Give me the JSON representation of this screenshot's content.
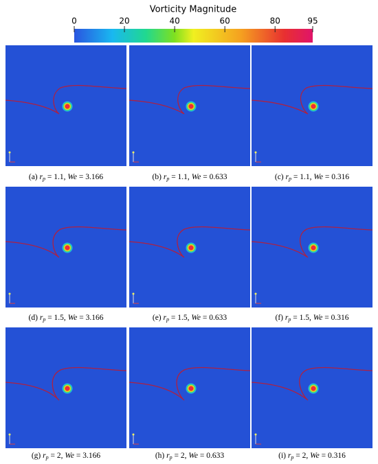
{
  "colorbar": {
    "title": "Vorticity Magnitude",
    "range": [
      0,
      95
    ],
    "ticks": [
      0,
      20,
      40,
      60,
      80,
      95
    ]
  },
  "panels": [
    {
      "caption": [
        "(a) ",
        "r",
        "p",
        " = 1.1, ",
        "We",
        " = 3.166"
      ]
    },
    {
      "caption": [
        "(b) ",
        "r",
        "p",
        " = 1.1, ",
        "We",
        " = 0.633"
      ]
    },
    {
      "caption": [
        "(c) ",
        "r",
        "p",
        " = 1.1, ",
        "We",
        " = 0.316"
      ]
    },
    {
      "caption": [
        "(d) ",
        "r",
        "p",
        " = 1.5, ",
        "We",
        " = 3.166"
      ]
    },
    {
      "caption": [
        "(e) ",
        "r",
        "p",
        " = 1.5, ",
        "We",
        " = 0.633"
      ]
    },
    {
      "caption": [
        "(f) ",
        "r",
        "p",
        " = 1.5, ",
        "We",
        " = 0.316"
      ]
    },
    {
      "caption": [
        "(g) ",
        "r",
        "p",
        " = 2, ",
        "We",
        " = 3.166"
      ]
    },
    {
      "caption": [
        "(h) ",
        "r",
        "p",
        " = 2, ",
        "We",
        " = 0.633"
      ]
    },
    {
      "caption": [
        "(i) ",
        "r",
        "p",
        " = 2, ",
        "We",
        " = 0.316"
      ]
    }
  ]
}
